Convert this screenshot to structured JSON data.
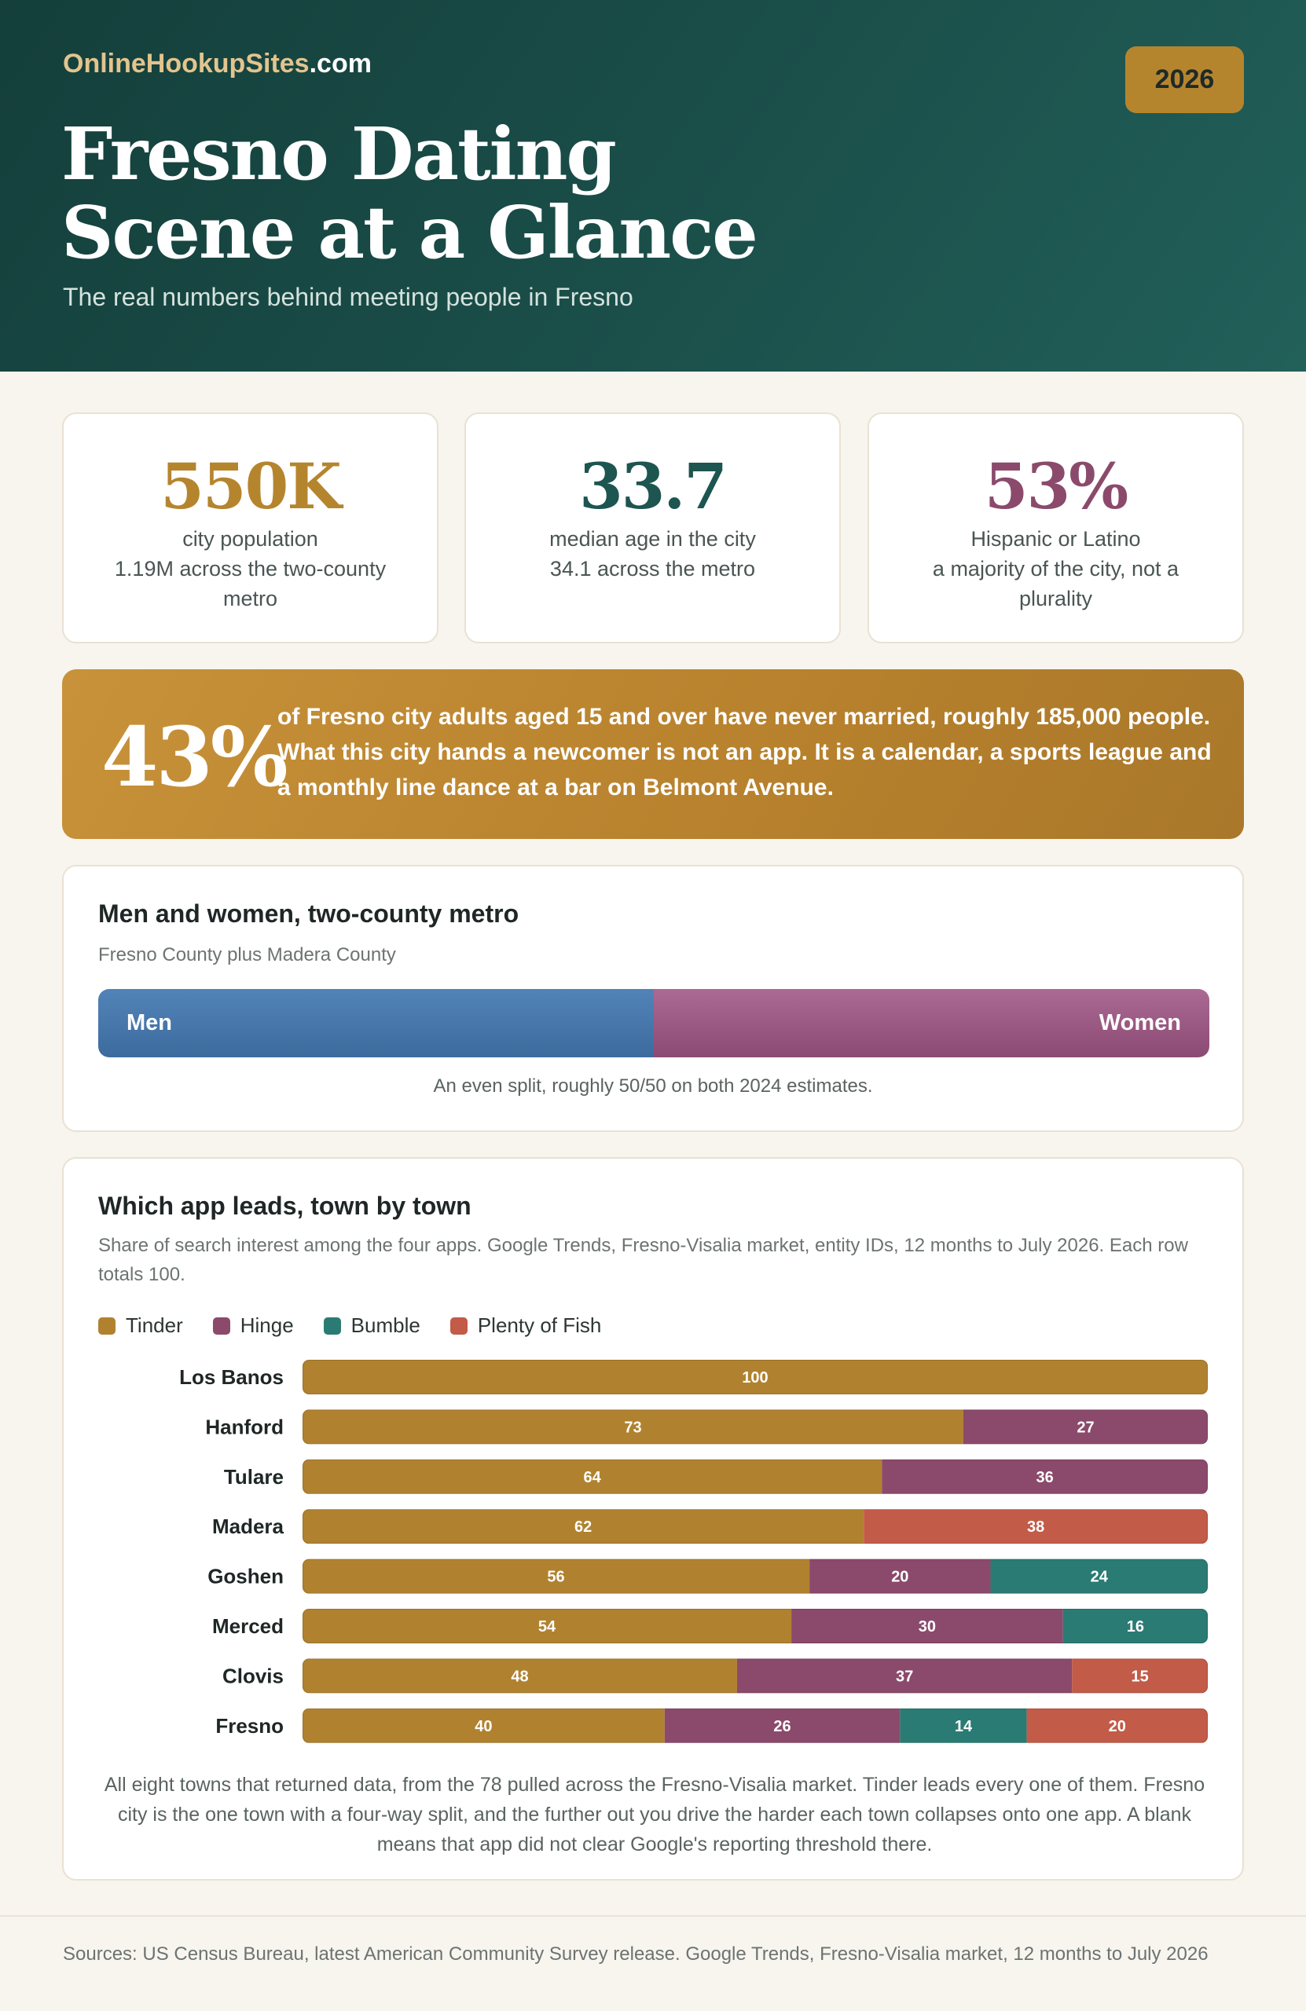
{
  "header": {
    "brand_main": "OnlineHookupSites",
    "brand_tld": ".com",
    "year": "2026",
    "title_line1": "Fresno Dating",
    "title_line2": "Scene at a Glance",
    "subtitle": "The real numbers behind meeting people in Fresno"
  },
  "stats": [
    {
      "value": "550K",
      "label": "city population",
      "sub": "1.19M across the two-county metro",
      "color": "#b5852e"
    },
    {
      "value": "33.7",
      "label": "median age in the city",
      "sub": "34.1 across the metro",
      "color": "#1d5550"
    },
    {
      "value": "53%",
      "label": "Hispanic or Latino",
      "sub": "a majority of the city, not a plurality",
      "color": "#8b4a6b"
    }
  ],
  "callout": {
    "number": "43%",
    "text": "of Fresno city adults aged 15 and over have never married, roughly 185,000 people. What this city hands a newcomer is not an app. It is a calendar, a sports league and a monthly line dance at a bar on Belmont Avenue."
  },
  "gender": {
    "title": "Men and women, two-county metro",
    "subtitle": "Fresno County plus Madera County",
    "men_label": "Men",
    "women_label": "Women",
    "men_share": 50,
    "women_share": 50,
    "note": "An even split, roughly 50/50 on both 2024 estimates.",
    "colors": {
      "men": "#4573a7",
      "women": "#9a5a82"
    }
  },
  "apps": {
    "title": "Which app leads, town by town",
    "subtitle": "Share of search interest among the four apps. Google Trends, Fresno-Visalia market, entity IDs, 12 months to July 2026. Each row totals 100.",
    "footnote": "All eight towns that returned data, from the 78 pulled across the Fresno-Visalia market. Tinder leads every one of them. Fresno city is the one town with a four-way split, and the further out you drive the harder each town collapses onto one app. A blank means that app did not clear Google's reporting threshold there."
  },
  "chart_data": {
    "type": "bar",
    "orientation": "horizontal",
    "stacked": true,
    "title": "Which app leads, town by town",
    "categories": [
      "Los Banos",
      "Hanford",
      "Tulare",
      "Madera",
      "Goshen",
      "Merced",
      "Clovis",
      "Fresno"
    ],
    "series": [
      {
        "name": "Tinder",
        "color": "#b08230",
        "values": [
          100,
          73,
          64,
          62,
          56,
          54,
          48,
          40
        ]
      },
      {
        "name": "Hinge",
        "color": "#8b4a6b",
        "values": [
          0,
          27,
          36,
          0,
          20,
          30,
          37,
          26
        ]
      },
      {
        "name": "Bumble",
        "color": "#2a7b73",
        "values": [
          0,
          0,
          0,
          0,
          24,
          16,
          0,
          14
        ]
      },
      {
        "name": "Plenty of Fish",
        "color": "#c25b48",
        "values": [
          0,
          0,
          0,
          38,
          0,
          0,
          15,
          20
        ]
      }
    ],
    "xlim": [
      0,
      100
    ],
    "legend_position": "top-left"
  },
  "footer": {
    "sources": "Sources: US Census Bureau, latest American Community Survey release. Google Trends, Fresno-Visalia market, 12 months to July 2026"
  }
}
